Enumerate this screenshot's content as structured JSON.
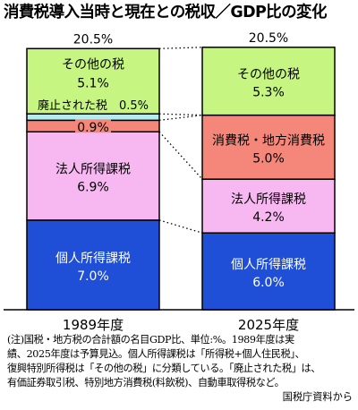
{
  "title": "消費税導入当時と現在との税収／GDP比の変化",
  "chart_data": {
    "type": "bar",
    "stacked": true,
    "categories": [
      "1989年度",
      "2025年度"
    ],
    "totals": [
      "20.5%",
      "20.5%"
    ],
    "colors": {
      "personal_income_tax": "#1f4fd6",
      "corporate_tax": "#f7b8f2",
      "consumption_tax": "#f4877a",
      "abolished_tax": "#b6ecee",
      "other_tax": "#c6f582"
    },
    "series": [
      {
        "key": "personal_income_tax",
        "name": "個人所得課税",
        "values": [
          7.0,
          6.0
        ],
        "labels": [
          "7.0%",
          "6.0%"
        ]
      },
      {
        "key": "corporate_tax",
        "name": "法人所得課税",
        "values": [
          6.9,
          4.2
        ],
        "labels": [
          "6.9%",
          "4.2%"
        ]
      },
      {
        "key": "consumption_tax",
        "name": "消費税・地方消費税",
        "values": [
          0.9,
          5.0
        ],
        "labels": [
          "0.9%",
          "5.0%"
        ]
      },
      {
        "key": "abolished_tax",
        "name": "廃止された税",
        "values": [
          0.5,
          0
        ],
        "labels": [
          "0.5%",
          ""
        ]
      },
      {
        "key": "other_tax",
        "name": "その他の税",
        "values": [
          5.1,
          5.3
        ],
        "labels": [
          "5.1%",
          "5.3%"
        ]
      }
    ],
    "grid": false
  },
  "notes": [
    "(注)国税・地方税の合計額の名目GDP比、単位:%。1989年度は実",
    "績、2025年度は予算見込。個人所得課税は「所得税+個人住民税」、",
    "復興特別所得税は「その他の税」に分類している。「廃止された税」は、",
    "有価証券取引税、特別地方消費税(料飲税)、自動車取得税など。"
  ],
  "source": "国税庁資料から"
}
